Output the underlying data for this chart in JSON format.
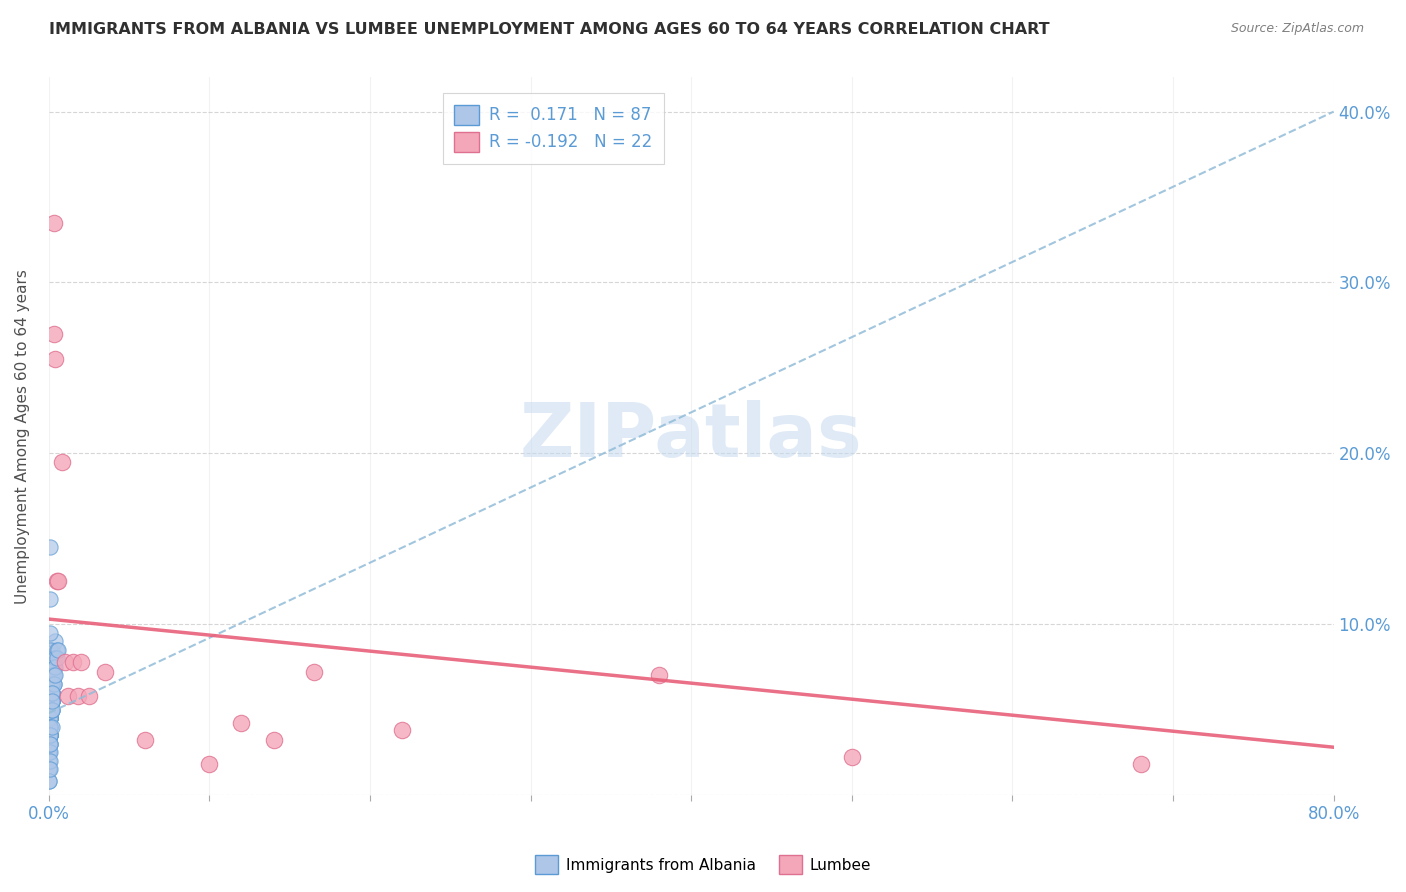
{
  "title": "IMMIGRANTS FROM ALBANIA VS LUMBEE UNEMPLOYMENT AMONG AGES 60 TO 64 YEARS CORRELATION CHART",
  "source": "Source: ZipAtlas.com",
  "ylabel": "Unemployment Among Ages 60 to 64 years",
  "xlim": [
    0,
    0.8
  ],
  "ylim": [
    0,
    0.42
  ],
  "albania_color": "#aec6e8",
  "lumbee_color": "#f4a7b9",
  "albania_edge_color": "#5b9bd5",
  "lumbee_edge_color": "#e07090",
  "trend_albania_color": "#92bcd8",
  "trend_lumbee_color": "#e8607a",
  "legend_R_albania": "0.171",
  "legend_N_albania": "87",
  "legend_R_lumbee": "-0.192",
  "legend_N_lumbee": "22",
  "watermark": "ZIPatlas",
  "albania_trend_x0": 0.0,
  "albania_trend_y0": 0.048,
  "albania_trend_x1": 0.8,
  "albania_trend_y1": 0.4,
  "lumbee_trend_x0": 0.0,
  "lumbee_trend_y0": 0.103,
  "lumbee_trend_x1": 0.8,
  "lumbee_trend_y1": 0.028,
  "albania_x": [
    0.002,
    0.001,
    0.003,
    0.001,
    0.002,
    0.003,
    0.004,
    0.001,
    0.0005,
    0.002,
    0.001,
    0.002,
    0.001,
    0.0008,
    0.002,
    0.003,
    0.0005,
    0.001,
    0.002,
    0.002,
    0.001,
    0.0005,
    0.002,
    0.001,
    0.002,
    0.001,
    0.002,
    0.001,
    0.0005,
    0.002,
    0.003,
    0.001,
    0.001,
    0.0003,
    0.002,
    0.002,
    0.001,
    0.002,
    0.001,
    0.0004,
    0.002,
    0.001,
    0.002,
    0.001,
    0.0005,
    0.001,
    0.001,
    0.002,
    0.002,
    0.001,
    0.0004,
    0.001,
    0.002,
    0.001,
    0.0003,
    0.001,
    0.001,
    0.002,
    0.001,
    0.0004,
    0.001,
    0.001,
    0.0003,
    0.002,
    0.001,
    0.0003,
    0.001,
    0.001,
    0.0003,
    0.001,
    0.001,
    0.0003,
    0.002,
    0.001,
    0.0003,
    0.001,
    0.001,
    0.005,
    0.004,
    0.003,
    0.004,
    0.003,
    0.004,
    0.005,
    0.002,
    0.006,
    0.002
  ],
  "albania_y": [
    0.075,
    0.115,
    0.08,
    0.065,
    0.085,
    0.075,
    0.09,
    0.075,
    0.145,
    0.055,
    0.065,
    0.07,
    0.07,
    0.06,
    0.08,
    0.075,
    0.095,
    0.085,
    0.065,
    0.06,
    0.055,
    0.048,
    0.075,
    0.065,
    0.06,
    0.05,
    0.07,
    0.065,
    0.045,
    0.055,
    0.065,
    0.05,
    0.055,
    0.035,
    0.06,
    0.055,
    0.045,
    0.065,
    0.05,
    0.035,
    0.055,
    0.045,
    0.06,
    0.05,
    0.035,
    0.045,
    0.05,
    0.055,
    0.06,
    0.04,
    0.03,
    0.045,
    0.05,
    0.035,
    0.025,
    0.045,
    0.035,
    0.05,
    0.04,
    0.025,
    0.035,
    0.04,
    0.02,
    0.05,
    0.03,
    0.015,
    0.035,
    0.03,
    0.015,
    0.035,
    0.025,
    0.008,
    0.04,
    0.02,
    0.008,
    0.03,
    0.015,
    0.085,
    0.08,
    0.07,
    0.075,
    0.065,
    0.07,
    0.08,
    0.06,
    0.085,
    0.055
  ],
  "lumbee_x": [
    0.003,
    0.003,
    0.004,
    0.005,
    0.006,
    0.008,
    0.01,
    0.012,
    0.015,
    0.018,
    0.02,
    0.025,
    0.035,
    0.06,
    0.1,
    0.12,
    0.14,
    0.165,
    0.22,
    0.38,
    0.5,
    0.68
  ],
  "lumbee_y": [
    0.335,
    0.27,
    0.255,
    0.125,
    0.125,
    0.195,
    0.078,
    0.058,
    0.078,
    0.058,
    0.078,
    0.058,
    0.072,
    0.032,
    0.018,
    0.042,
    0.032,
    0.072,
    0.038,
    0.07,
    0.022,
    0.018
  ]
}
